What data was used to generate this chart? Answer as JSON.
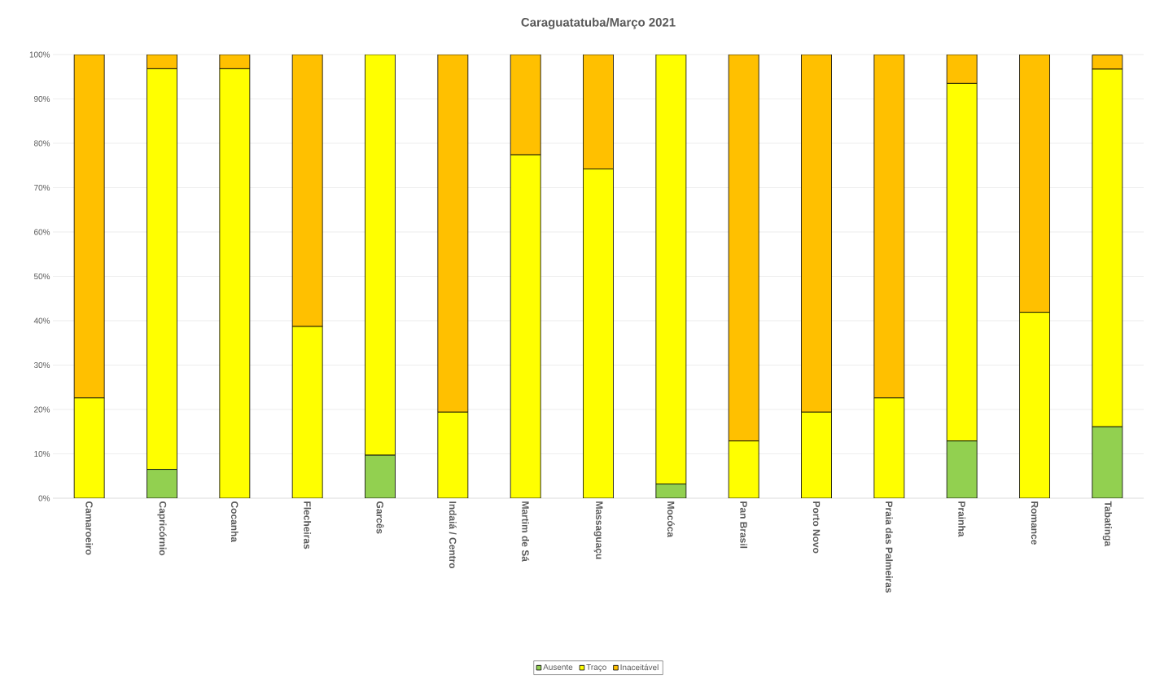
{
  "chart_data": {
    "type": "bar",
    "title": "Caraguatatuba/Março 2021",
    "categories": [
      "Camaroeiro",
      "Capricórnio",
      "Cocanha",
      "Flecheiras",
      "Garcês",
      "Indaiá / Centro",
      "Martim de Sá",
      "Massaguaçu",
      "Mocóca",
      "Pan Brasil",
      "Porto Novo",
      "Praia das Palmeiras",
      "Prainha",
      "Romance",
      "Tabatinga"
    ],
    "stacked": true,
    "series": [
      {
        "name": "Ausente",
        "color": "#92d050",
        "values": [
          0,
          6.5,
          0,
          0,
          9.7,
          0,
          0,
          0,
          3.2,
          0,
          0,
          0,
          12.9,
          0,
          16.1
        ]
      },
      {
        "name": "Traço",
        "color": "#ffff00",
        "values": [
          22.6,
          90.3,
          96.8,
          38.7,
          90.3,
          19.4,
          77.4,
          74.2,
          96.8,
          12.9,
          19.4,
          22.6,
          80.6,
          41.9,
          80.6
        ]
      },
      {
        "name": "Inaceitável",
        "color": "#ffc000",
        "values": [
          77.4,
          3.2,
          3.2,
          61.3,
          0,
          80.6,
          22.6,
          25.8,
          0,
          87.1,
          80.6,
          77.4,
          6.5,
          58.1,
          3.2
        ]
      }
    ],
    "ylim": [
      0,
      100
    ],
    "yticks": [
      {
        "value": 0,
        "label": "0%"
      },
      {
        "value": 10,
        "label": "10%"
      },
      {
        "value": 20,
        "label": "20%"
      },
      {
        "value": 30,
        "label": "30%"
      },
      {
        "value": 40,
        "label": "40%"
      },
      {
        "value": 50,
        "label": "50%"
      },
      {
        "value": 60,
        "label": "60%"
      },
      {
        "value": 70,
        "label": "70%"
      },
      {
        "value": 80,
        "label": "80%"
      },
      {
        "value": 90,
        "label": "90%"
      },
      {
        "value": 100,
        "label": "100%"
      }
    ],
    "grid": "y",
    "legend": "bottom"
  }
}
